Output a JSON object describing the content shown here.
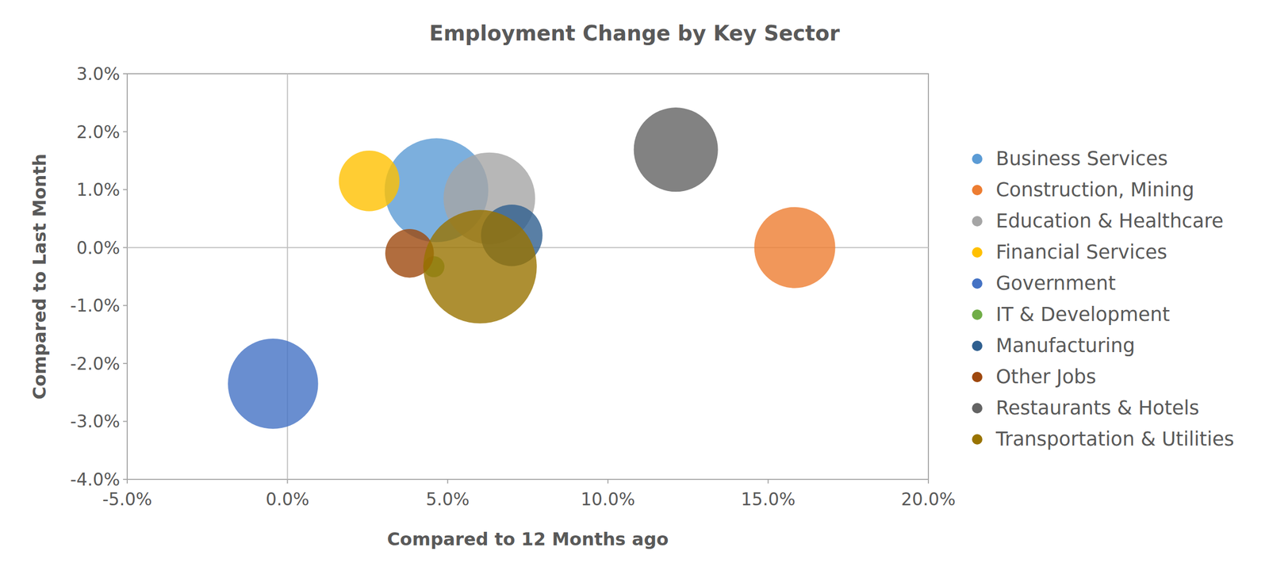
{
  "chart_data": {
    "type": "bubble",
    "title": "Employment Change by Key Sector",
    "x_label": "Compared to 12 Months ago",
    "y_label": "Compared to Last Month",
    "xlim": [
      -5,
      20
    ],
    "xticks": [
      {
        "value": -5,
        "label": "-5.0%"
      },
      {
        "value": 0,
        "label": "0.0%"
      },
      {
        "value": 5,
        "label": "5.0%"
      },
      {
        "value": 10,
        "label": "10.0%"
      },
      {
        "value": 15,
        "label": "15.0%"
      },
      {
        "value": 20,
        "label": "20.0%"
      }
    ],
    "ylim": [
      -4,
      3
    ],
    "yticks": [
      {
        "value": -4,
        "label": "-4.0%"
      },
      {
        "value": -3,
        "label": "-3.0%"
      },
      {
        "value": -2,
        "label": "-2.0%"
      },
      {
        "value": -1,
        "label": "-1.0%"
      },
      {
        "value": 0,
        "label": "0.0%"
      },
      {
        "value": 1,
        "label": "1.0%"
      },
      {
        "value": 2,
        "label": "2.0%"
      },
      {
        "value": 3,
        "label": "3.0%"
      }
    ],
    "grid": false,
    "legend": "right",
    "series": [
      {
        "name": "Business Services",
        "color": "#5b9bd5",
        "x": [
          4.65
        ],
        "values": [
          0.99
        ],
        "size": [
          41
        ]
      },
      {
        "name": "Construction, Mining",
        "color": "#ed7d31",
        "x": [
          15.83
        ],
        "values": [
          0.0
        ],
        "size": [
          25
        ]
      },
      {
        "name": "Education & Healthcare",
        "color": "#a5a5a5",
        "x": [
          6.3
        ],
        "values": [
          0.85
        ],
        "size": [
          32
        ]
      },
      {
        "name": "Financial Services",
        "color": "#ffc000",
        "x": [
          2.55
        ],
        "values": [
          1.15
        ],
        "size": [
          14
        ]
      },
      {
        "name": "Government",
        "color": "#4472c4",
        "x": [
          -0.45
        ],
        "values": [
          -2.35
        ],
        "size": [
          31
        ]
      },
      {
        "name": "IT & Development",
        "color": "#70ad47",
        "x": [
          4.57
        ],
        "values": [
          -0.33
        ],
        "size": [
          1.7
        ]
      },
      {
        "name": "Manufacturing",
        "color": "#2f5f8f",
        "x": [
          7.0
        ],
        "values": [
          0.21
        ],
        "size": [
          14.4
        ]
      },
      {
        "name": "Other Jobs",
        "color": "#9e480e",
        "x": [
          3.81
        ],
        "values": [
          -0.1
        ],
        "size": [
          9
        ]
      },
      {
        "name": "Restaurants & Hotels",
        "color": "#636363",
        "x": [
          12.12
        ],
        "values": [
          1.69
        ],
        "size": [
          27
        ]
      },
      {
        "name": "Transportation & Utilities",
        "color": "#997300",
        "x": [
          6.01
        ],
        "values": [
          -0.33
        ],
        "size": [
          49
        ]
      }
    ]
  }
}
